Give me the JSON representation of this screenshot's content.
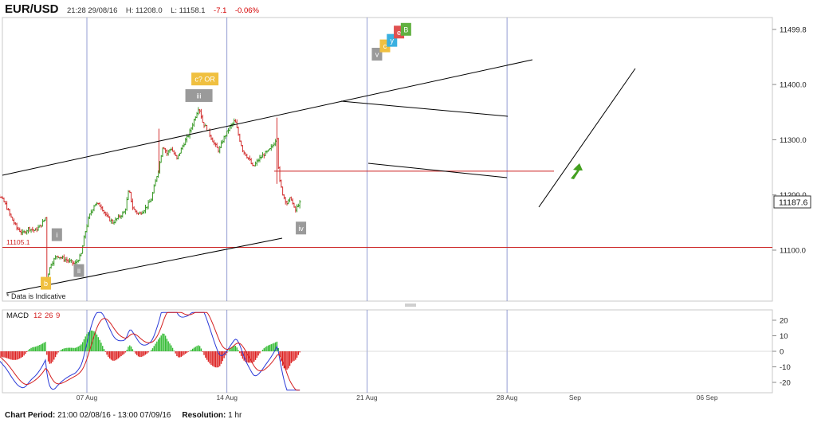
{
  "header": {
    "symbol": "EUR/USD",
    "time": "21:28 29/08/16",
    "high_label": "H:",
    "high": "11208.0",
    "low_label": "L:",
    "low": "11158.1",
    "change": "-7.1",
    "change_pct": "-0.06%"
  },
  "footer": {
    "period_label": "Chart Period:",
    "period_value": "21:00 02/08/16 - 13:00 07/09/16",
    "resolution_label": "Resolution:",
    "resolution_value": "1 hr"
  },
  "notice": "* Data is Indicative",
  "price_tag": "11187.6",
  "support_label": "11105.1",
  "chart_data": {
    "type": "ohlc-bar",
    "price_panel": {
      "y_ticks": [
        "11100.0",
        "11200.0",
        "11300.0",
        "11400.0",
        "11499.8"
      ],
      "y_tick_values": [
        11100,
        11200,
        11300,
        11400,
        11499.8
      ],
      "last_price": 11187.6,
      "support_level": 11105.1,
      "support_zone": 11243,
      "x_ticks": [
        "07 Aug",
        "14 Aug",
        "21 Aug",
        "28 Aug",
        "Sep",
        "06 Sep"
      ],
      "close_path": [
        [
          2.0,
          11225
        ],
        [
          2.3,
          11215
        ],
        [
          2.6,
          11200
        ],
        [
          2.9,
          11185
        ],
        [
          3.2,
          11160
        ],
        [
          3.5,
          11140
        ],
        [
          3.8,
          11130
        ],
        [
          4.1,
          11140
        ],
        [
          4.4,
          11135
        ],
        [
          4.7,
          11145
        ],
        [
          4.95,
          11160
        ],
        [
          5.0,
          11050
        ],
        [
          5.2,
          11075
        ],
        [
          5.5,
          11090
        ],
        [
          5.8,
          11085
        ],
        [
          6.1,
          11080
        ],
        [
          6.4,
          11075
        ],
        [
          6.7,
          11090
        ],
        [
          6.9,
          11130
        ],
        [
          7.1,
          11160
        ],
        [
          7.4,
          11185
        ],
        [
          7.7,
          11180
        ],
        [
          8.0,
          11160
        ],
        [
          8.3,
          11150
        ],
        [
          8.6,
          11160
        ],
        [
          8.9,
          11170
        ],
        [
          9.1,
          11210
        ],
        [
          9.3,
          11175
        ],
        [
          9.6,
          11165
        ],
        [
          9.9,
          11175
        ],
        [
          10.2,
          11190
        ],
        [
          10.4,
          11220
        ],
        [
          10.6,
          11250
        ],
        [
          10.8,
          11290
        ],
        [
          11.0,
          11275
        ],
        [
          11.2,
          11285
        ],
        [
          11.5,
          11265
        ],
        [
          11.8,
          11290
        ],
        [
          12.1,
          11310
        ],
        [
          12.4,
          11340
        ],
        [
          12.6,
          11360
        ],
        [
          12.8,
          11330
        ],
        [
          13.0,
          11320
        ],
        [
          13.2,
          11305
        ],
        [
          13.4,
          11290
        ],
        [
          13.6,
          11280
        ],
        [
          13.8,
          11300
        ],
        [
          14.1,
          11320
        ],
        [
          14.4,
          11335
        ],
        [
          14.6,
          11305
        ],
        [
          14.8,
          11280
        ],
        [
          15.1,
          11265
        ],
        [
          15.3,
          11250
        ],
        [
          15.6,
          11265
        ],
        [
          15.9,
          11275
        ],
        [
          16.1,
          11280
        ],
        [
          16.3,
          11290
        ],
        [
          16.5,
          11305
        ],
        [
          16.6,
          11230
        ],
        [
          16.8,
          11200
        ],
        [
          17.0,
          11185
        ],
        [
          17.2,
          11195
        ],
        [
          17.4,
          11170
        ],
        [
          17.6,
          11185
        ]
      ],
      "annotations": [
        {
          "label": "b",
          "x": 4.95,
          "y": 11040,
          "color": "#f0c040"
        },
        {
          "label": "i",
          "x": 5.5,
          "y": 11128,
          "color": "#9a9a9a"
        },
        {
          "label": "ii",
          "x": 6.6,
          "y": 11063,
          "color": "#9a9a9a"
        },
        {
          "label": "iii",
          "x": 12.6,
          "y": 11380,
          "color": "#9a9a9a"
        },
        {
          "label": "c? OR",
          "x": 12.9,
          "y": 11410,
          "color": "#f0c040"
        },
        {
          "label": "iv",
          "x": 17.7,
          "y": 11140,
          "color": "#9a9a9a"
        },
        {
          "label": "v",
          "x": 21.5,
          "y": 11455,
          "color": "#9a9a9a"
        },
        {
          "label": "c",
          "x": 21.9,
          "y": 11470,
          "color": "#f0c040"
        },
        {
          "label": "y",
          "x": 22.25,
          "y": 11480,
          "color": "#3ab0e0"
        },
        {
          "label": "e",
          "x": 22.6,
          "y": 11495,
          "color": "#e05050"
        },
        {
          "label": "B",
          "x": 22.95,
          "y": 11500,
          "color": "#60b040"
        }
      ]
    },
    "macd_panel": {
      "title": "MACD",
      "params": [
        "12",
        "26",
        "9"
      ],
      "y_ticks": [
        "20",
        "10",
        "0",
        "-10",
        "-20"
      ],
      "y_tick_values": [
        20,
        10,
        0,
        -10,
        -20
      ]
    }
  },
  "colors": {
    "up_bar": "#3a9a28",
    "down_bar": "#d23030",
    "trendline": "#000000",
    "support": "#cc2222",
    "vline": "#7a86c8",
    "macd_line": "#2a3ad8",
    "signal_line": "#d42020",
    "hist_pos": "#33bb33",
    "hist_neg": "#dd2222",
    "arrow": "#44a020"
  }
}
